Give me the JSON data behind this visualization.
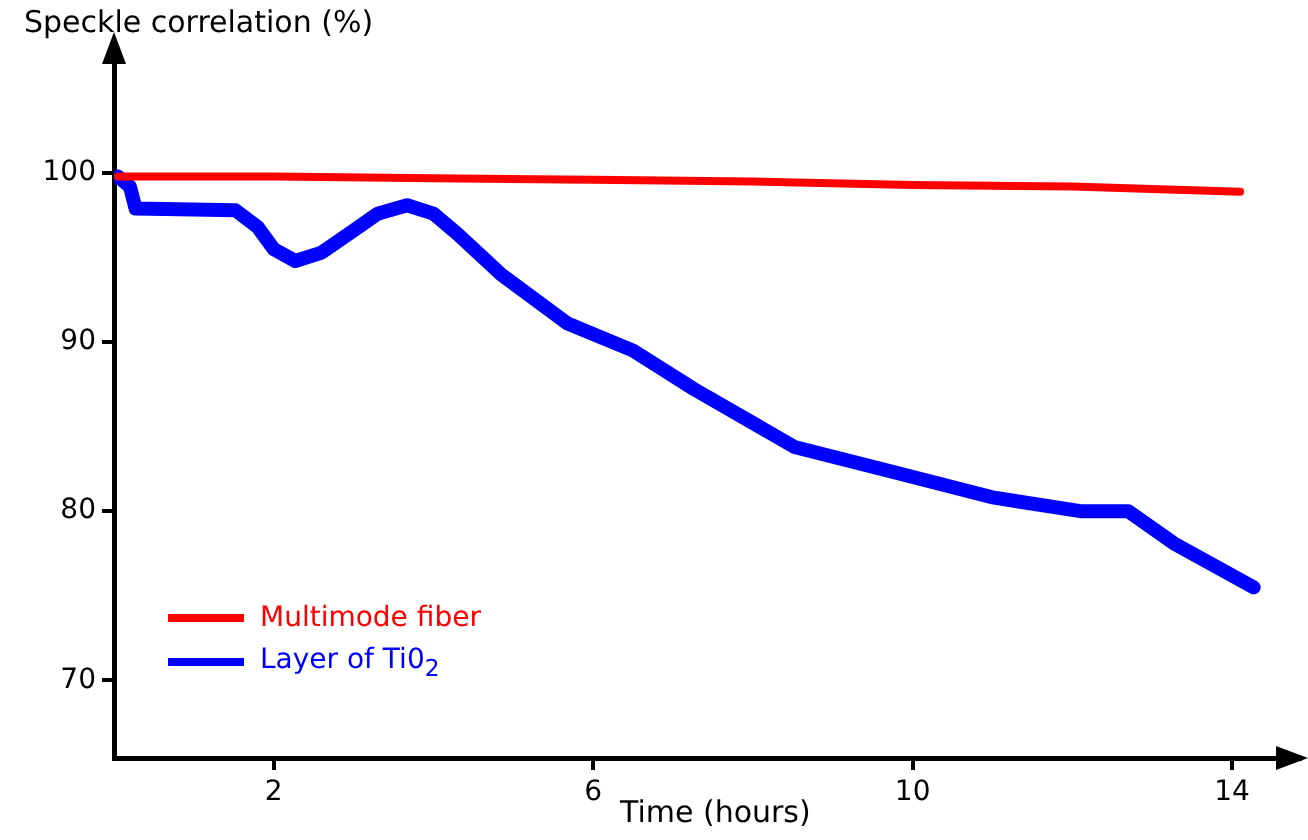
{
  "chart_data": {
    "type": "line",
    "xlabel": "Time (hours)",
    "ylabel": "Speckle correlation (%)",
    "xlim": [
      0,
      14.85
    ],
    "xticks": [
      2,
      6,
      10,
      14
    ],
    "ylim": [
      65.4,
      107.4
    ],
    "yticks": [
      70,
      80,
      90,
      100
    ],
    "legend": "bottom left",
    "marker": "none",
    "line_style": "solid",
    "grid": false,
    "series": [
      {
        "name": "Multimode fiber",
        "color": "#ff0000",
        "x": [
          0.05,
          2,
          4,
          6,
          8,
          10,
          12,
          14.1
        ],
        "values": [
          99.8,
          99.8,
          99.7,
          99.6,
          99.5,
          99.3,
          99.2,
          98.9
        ]
      },
      {
        "name": "Layer of Ti0$_{2}$",
        "color": "#0000ff",
        "x": [
          0.05,
          0.2,
          0.27,
          1.52,
          1.8,
          2.0,
          2.27,
          2.6,
          3.0,
          3.3,
          3.67,
          4.0,
          4.3,
          4.85,
          5.68,
          6.5,
          7.27,
          8.52,
          9.77,
          11.02,
          12.1,
          12.7,
          13.27,
          14.27
        ],
        "values": [
          99.8,
          99.2,
          97.9,
          97.8,
          96.8,
          95.5,
          94.8,
          95.3,
          96.6,
          97.6,
          98.1,
          97.6,
          96.4,
          94,
          91.1,
          89.5,
          87.2,
          83.8,
          82.3,
          80.8,
          80,
          80,
          78.1,
          75.5
        ]
      }
    ]
  }
}
